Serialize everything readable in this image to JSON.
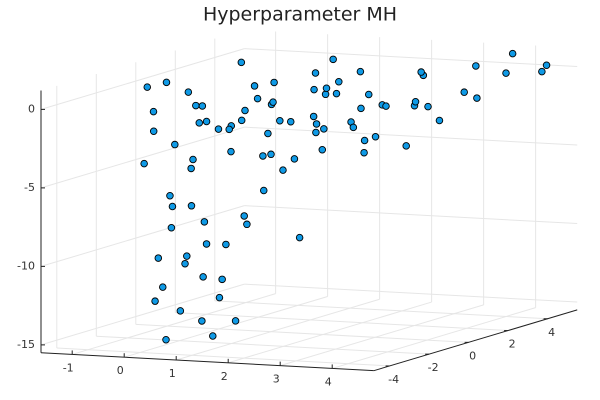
{
  "chart_data": {
    "type": "scatter3d",
    "title": "Hyperparameter MH",
    "x": [
      -0.5,
      0,
      0.5,
      1,
      1.5,
      2,
      2.5,
      3,
      -0.2,
      0.8,
      1.2,
      1.8,
      2.2,
      2.8,
      0.3,
      -0.7,
      0.1,
      1.4,
      2.6,
      3.2,
      -0.4,
      0.6,
      1.1,
      1.7,
      2.4,
      3.4,
      0.9,
      -0.1,
      2,
      1.3,
      0.4,
      1.9,
      2.7,
      -0.6,
      0.2,
      3.1,
      1.6,
      2.3,
      0.7,
      -0.3,
      1,
      2.9,
      3.5,
      0.5,
      1.5,
      2.1,
      -0.8,
      0,
      1.2,
      2.5,
      3.3,
      0.8,
      1.8,
      -0.5,
      0.3,
      2.6,
      1.4,
      -0.9,
      0.6,
      3.6,
      0.5,
      0.8,
      1.2,
      0.3,
      1.5,
      0.9,
      0.6,
      1.1,
      0.4,
      1.3,
      0.7,
      1,
      0.5,
      1.4,
      0.2,
      1.7,
      1.6,
      0.9,
      2,
      1.8,
      0.1,
      1.2,
      2.5,
      0.7,
      4,
      4.5,
      3.8,
      4.2,
      4.4,
      3.9,
      -1,
      -1.2
    ],
    "y": [
      -2,
      -1,
      0,
      1,
      2,
      3,
      1,
      2,
      0.5,
      -1.5,
      -0.5,
      0.2,
      -1,
      0,
      2,
      1,
      -2.5,
      3,
      3.5,
      -0.5,
      -0.5,
      1.5,
      2.5,
      -2,
      -2.5,
      1,
      -3,
      3,
      0.8,
      -1.2,
      0.9,
      1.8,
      -1.8,
      2.2,
      -1.7,
      3,
      0.6,
      2.4,
      3.6,
      -3,
      0,
      2.6,
      3.2,
      -0.8,
      -2.8,
      -0.3,
      -1.2,
      1.8,
      4,
      4,
      -1.5,
      2.8,
      -1.5,
      0,
      -2.2,
      0.5,
      1.2,
      3.5,
      4.2,
      0,
      -3.8,
      -3.5,
      -3.9,
      -3.2,
      -3.6,
      -4,
      -3.3,
      -3.7,
      -3.9,
      -3.4,
      -3.8,
      -3.5,
      -4,
      -4,
      -3.6,
      -3.2,
      -2.8,
      -3,
      -3,
      -3.9,
      -3.5,
      -3,
      -2.5,
      -4.2,
      4,
      4.5,
      3,
      2,
      5,
      4.6,
      -1,
      0.5
    ],
    "z": [
      -1,
      -2,
      -1.5,
      -2.5,
      -1,
      -2,
      -0.5,
      -1.5,
      -3,
      -3.5,
      -0.8,
      -2.2,
      -1.2,
      -3,
      -0.5,
      -1.8,
      -2.8,
      -3.2,
      -0.2,
      -2.5,
      -0.3,
      -2.7,
      -1.3,
      -2,
      -3.3,
      -0.8,
      -1,
      -2.2,
      0.3,
      -3.8,
      -1.1,
      -3,
      -1.6,
      -3.5,
      -0.6,
      -2.8,
      -0.2,
      -1.8,
      -1.4,
      -3.9,
      -4.2,
      0.4,
      -1,
      -2.4,
      -0.9,
      -3.6,
      -2.6,
      -0.7,
      -0.4,
      -2.4,
      -0.3,
      -3.9,
      -4.5,
      -4.8,
      -4.4,
      -4,
      0.6,
      0,
      0.2,
      -3.2,
      -5.5,
      -6.2,
      -7,
      -7.8,
      -8.5,
      -9.2,
      -10,
      -10.6,
      -11.3,
      -12,
      -12.8,
      -13.5,
      -14.6,
      -14.2,
      -9.6,
      -6.8,
      -7.5,
      -8.8,
      -5.2,
      -13.2,
      -12.4,
      -11,
      -8.3,
      -6,
      0,
      0,
      0.8,
      -0.8,
      0.2,
      1,
      0.1,
      -0.2
    ],
    "color": "#0f9ae6",
    "xlim": [
      -1.6,
      4.8
    ],
    "xticks": [
      -1,
      0,
      1,
      2,
      3,
      4
    ],
    "ylim": [
      -4.8,
      5.5
    ],
    "yticks": [
      -4,
      -2,
      0,
      2,
      4
    ],
    "zlim": [
      -15.5,
      1.2
    ],
    "zticks": [
      -15,
      -10,
      -5,
      0
    ],
    "grid": true
  }
}
